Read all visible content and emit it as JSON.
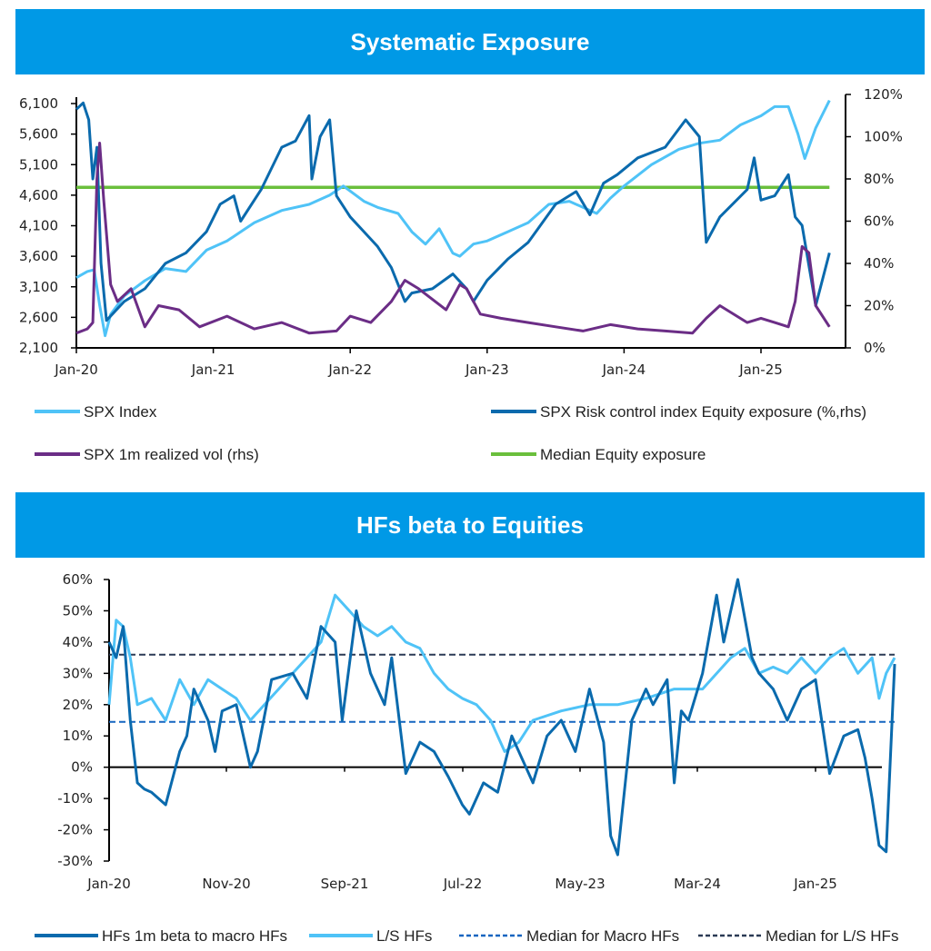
{
  "banners": {
    "chart1_title": "Systematic Exposure",
    "chart2_title": "HFs beta to Equities"
  },
  "colors": {
    "banner": "#0099e6",
    "spx_index": "#4fc3f7",
    "risk_control": "#0a6aad",
    "realized_vol": "#6b2d86",
    "median_exposure": "#6abf3c",
    "macro_hfs": "#0a6aad",
    "ls_hfs": "#4fc3f7",
    "median_macro": "#1565c0",
    "median_ls": "#2b3a55"
  },
  "chart_data": [
    {
      "type": "line",
      "title": "Systematic Exposure",
      "x_ticks": [
        "Jan-20",
        "Jan-21",
        "Jan-22",
        "Jan-23",
        "Jan-24",
        "Jan-25"
      ],
      "x_range": [
        2020.0,
        2025.5
      ],
      "y_left": {
        "ticks": [
          "6,100",
          "5,600",
          "5,100",
          "4,600",
          "4,100",
          "3,600",
          "3,100",
          "2,600",
          "2,100"
        ],
        "range": [
          2100,
          6100
        ]
      },
      "y_right": {
        "ticks": [
          "120%",
          "100%",
          "80%",
          "60%",
          "40%",
          "20%",
          "0%"
        ],
        "range": [
          0,
          120
        ]
      },
      "legend": [
        {
          "label": "SPX Index",
          "key": "spx_index",
          "style": "solid"
        },
        {
          "label": "SPX Risk control index Equity exposure (%,rhs)",
          "key": "risk_control",
          "style": "solid"
        },
        {
          "label": "SPX 1m realized vol (rhs)",
          "key": "realized_vol",
          "style": "solid"
        },
        {
          "label": "Median Equity exposure",
          "key": "median_exposure",
          "style": "solid"
        }
      ],
      "series": [
        {
          "name": "SPX Index",
          "axis": "left",
          "key": "spx_index",
          "x": [
            2020.0,
            2020.08,
            2020.13,
            2020.17,
            2020.21,
            2020.25,
            2020.35,
            2020.5,
            2020.65,
            2020.8,
            2020.95,
            2021.1,
            2021.3,
            2021.5,
            2021.7,
            2021.85,
            2021.95,
            2022.1,
            2022.2,
            2022.35,
            2022.45,
            2022.55,
            2022.65,
            2022.75,
            2022.8,
            2022.9,
            2023.0,
            2023.15,
            2023.3,
            2023.45,
            2023.6,
            2023.8,
            2023.9,
            2024.0,
            2024.2,
            2024.4,
            2024.55,
            2024.7,
            2024.85,
            2025.0,
            2025.1,
            2025.2,
            2025.27,
            2025.32,
            2025.4,
            2025.5
          ],
          "values": [
            3250,
            3350,
            3380,
            2800,
            2300,
            2650,
            2950,
            3200,
            3400,
            3350,
            3700,
            3850,
            4150,
            4350,
            4450,
            4600,
            4750,
            4500,
            4400,
            4300,
            4000,
            3800,
            4050,
            3650,
            3600,
            3800,
            3850,
            4000,
            4150,
            4450,
            4500,
            4300,
            4550,
            4750,
            5100,
            5350,
            5450,
            5500,
            5750,
            5900,
            6050,
            6050,
            5600,
            5200,
            5700,
            6150
          ]
        },
        {
          "name": "SPX Risk control index Equity exposure",
          "axis": "right",
          "key": "risk_control",
          "x": [
            2020.0,
            2020.05,
            2020.09,
            2020.12,
            2020.15,
            2020.18,
            2020.22,
            2020.35,
            2020.5,
            2020.65,
            2020.8,
            2020.95,
            2021.05,
            2021.15,
            2021.2,
            2021.35,
            2021.5,
            2021.6,
            2021.7,
            2021.72,
            2021.78,
            2021.85,
            2021.9,
            2022.0,
            2022.1,
            2022.2,
            2022.3,
            2022.4,
            2022.45,
            2022.6,
            2022.75,
            2022.85,
            2022.9,
            2023.0,
            2023.15,
            2023.3,
            2023.5,
            2023.65,
            2023.75,
            2023.85,
            2023.95,
            2024.1,
            2024.3,
            2024.45,
            2024.55,
            2024.6,
            2024.7,
            2024.9,
            2024.95,
            2025.0,
            2025.1,
            2025.2,
            2025.25,
            2025.3,
            2025.4,
            2025.5
          ],
          "values": [
            113,
            116,
            108,
            80,
            95,
            40,
            13,
            22,
            28,
            40,
            45,
            55,
            68,
            72,
            60,
            75,
            95,
            98,
            110,
            80,
            100,
            108,
            72,
            62,
            55,
            48,
            38,
            22,
            26,
            28,
            35,
            28,
            22,
            32,
            42,
            50,
            68,
            74,
            63,
            78,
            82,
            90,
            95,
            108,
            100,
            50,
            62,
            75,
            90,
            70,
            72,
            82,
            62,
            58,
            20,
            45
          ]
        },
        {
          "name": "SPX 1m realized vol",
          "axis": "right",
          "key": "realized_vol",
          "x": [
            2020.0,
            2020.08,
            2020.12,
            2020.15,
            2020.17,
            2020.2,
            2020.25,
            2020.3,
            2020.4,
            2020.5,
            2020.6,
            2020.75,
            2020.9,
            2021.1,
            2021.3,
            2021.5,
            2021.7,
            2021.9,
            2022.0,
            2022.15,
            2022.3,
            2022.4,
            2022.5,
            2022.7,
            2022.8,
            2022.85,
            2022.95,
            2023.1,
            2023.3,
            2023.5,
            2023.7,
            2023.9,
            2024.1,
            2024.3,
            2024.5,
            2024.6,
            2024.7,
            2024.9,
            2025.0,
            2025.1,
            2025.2,
            2025.25,
            2025.3,
            2025.35,
            2025.4,
            2025.5
          ],
          "values": [
            7,
            9,
            12,
            80,
            97,
            70,
            30,
            22,
            28,
            10,
            20,
            18,
            10,
            15,
            9,
            12,
            7,
            8,
            15,
            12,
            22,
            32,
            28,
            18,
            30,
            28,
            16,
            14,
            12,
            10,
            8,
            11,
            9,
            8,
            7,
            14,
            20,
            12,
            14,
            12,
            10,
            22,
            48,
            45,
            20,
            10
          ]
        },
        {
          "name": "Median Equity exposure",
          "axis": "right",
          "key": "median_exposure",
          "x": [
            2020.0,
            2025.5
          ],
          "values": [
            76,
            76
          ]
        }
      ]
    },
    {
      "type": "line",
      "title": "HFs beta to Equities",
      "x_ticks": [
        "Jan-20",
        "Nov-20",
        "Sep-21",
        "Jul-22",
        "May-23",
        "Mar-24",
        "Jan-25"
      ],
      "x_range": [
        2020.0,
        2025.56
      ],
      "y": {
        "ticks": [
          "60%",
          "50%",
          "40%",
          "30%",
          "20%",
          "10%",
          "0%",
          "-10%",
          "-20%",
          "-30%"
        ],
        "range": [
          -30,
          60
        ]
      },
      "legend": [
        {
          "label": "HFs 1m beta to macro HFs",
          "key": "macro_hfs",
          "style": "solid"
        },
        {
          "label": "L/S HFs",
          "key": "ls_hfs",
          "style": "solid"
        },
        {
          "label": "Median for Macro HFs",
          "key": "median_macro",
          "style": "dashed"
        },
        {
          "label": "Median for L/S HFs",
          "key": "median_ls",
          "style": "dashed"
        }
      ],
      "series": [
        {
          "name": "HFs 1m beta to macro HFs",
          "key": "macro_hfs",
          "x": [
            2020.0,
            2020.05,
            2020.1,
            2020.15,
            2020.2,
            2020.25,
            2020.3,
            2020.4,
            2020.5,
            2020.55,
            2020.6,
            2020.7,
            2020.75,
            2020.8,
            2020.9,
            2021.0,
            2021.05,
            2021.15,
            2021.3,
            2021.4,
            2021.5,
            2021.6,
            2021.65,
            2021.75,
            2021.85,
            2021.95,
            2022.0,
            2022.1,
            2022.2,
            2022.3,
            2022.4,
            2022.5,
            2022.55,
            2022.65,
            2022.75,
            2022.85,
            2023.0,
            2023.1,
            2023.2,
            2023.3,
            2023.4,
            2023.5,
            2023.55,
            2023.6,
            2023.7,
            2023.8,
            2023.85,
            2023.95,
            2024.0,
            2024.05,
            2024.1,
            2024.2,
            2024.3,
            2024.35,
            2024.45,
            2024.55,
            2024.6,
            2024.7,
            2024.8,
            2024.9,
            2025.0,
            2025.1,
            2025.2,
            2025.3,
            2025.35,
            2025.4,
            2025.45,
            2025.5,
            2025.56
          ],
          "values": [
            40,
            35,
            45,
            15,
            -5,
            -7,
            -8,
            -12,
            5,
            10,
            25,
            15,
            5,
            18,
            20,
            0,
            5,
            28,
            30,
            22,
            45,
            40,
            15,
            50,
            30,
            20,
            35,
            -2,
            8,
            5,
            -3,
            -12,
            -15,
            -5,
            -8,
            10,
            -5,
            10,
            15,
            5,
            25,
            8,
            -22,
            -28,
            15,
            25,
            20,
            28,
            -5,
            18,
            15,
            30,
            55,
            40,
            60,
            35,
            30,
            25,
            15,
            25,
            28,
            -2,
            10,
            12,
            3,
            -10,
            -25,
            -27,
            33
          ]
        },
        {
          "name": "L/S HFs",
          "key": "ls_hfs",
          "x": [
            2020.0,
            2020.05,
            2020.1,
            2020.15,
            2020.2,
            2020.3,
            2020.4,
            2020.5,
            2020.6,
            2020.7,
            2020.8,
            2020.9,
            2021.0,
            2021.1,
            2021.2,
            2021.3,
            2021.4,
            2021.5,
            2021.6,
            2021.7,
            2021.8,
            2021.9,
            2022.0,
            2022.1,
            2022.2,
            2022.3,
            2022.4,
            2022.5,
            2022.6,
            2022.7,
            2022.8,
            2022.9,
            2023.0,
            2023.2,
            2023.4,
            2023.6,
            2023.8,
            2024.0,
            2024.2,
            2024.4,
            2024.5,
            2024.6,
            2024.7,
            2024.8,
            2024.9,
            2025.0,
            2025.1,
            2025.2,
            2025.3,
            2025.4,
            2025.45,
            2025.5,
            2025.56
          ],
          "values": [
            20,
            47,
            45,
            35,
            20,
            22,
            15,
            28,
            20,
            28,
            25,
            22,
            15,
            20,
            25,
            30,
            35,
            40,
            55,
            50,
            45,
            42,
            45,
            40,
            38,
            30,
            25,
            22,
            20,
            15,
            5,
            8,
            15,
            18,
            20,
            20,
            22,
            25,
            25,
            35,
            38,
            30,
            32,
            30,
            35,
            30,
            35,
            38,
            30,
            35,
            22,
            30,
            35
          ]
        },
        {
          "name": "Median for Macro HFs",
          "key": "median_macro",
          "x": [
            2020.0,
            2025.56
          ],
          "values": [
            14.5,
            14.5
          ]
        },
        {
          "name": "Median for L/S HFs",
          "key": "median_ls",
          "x": [
            2020.0,
            2025.56
          ],
          "values": [
            36,
            36
          ]
        }
      ]
    }
  ]
}
